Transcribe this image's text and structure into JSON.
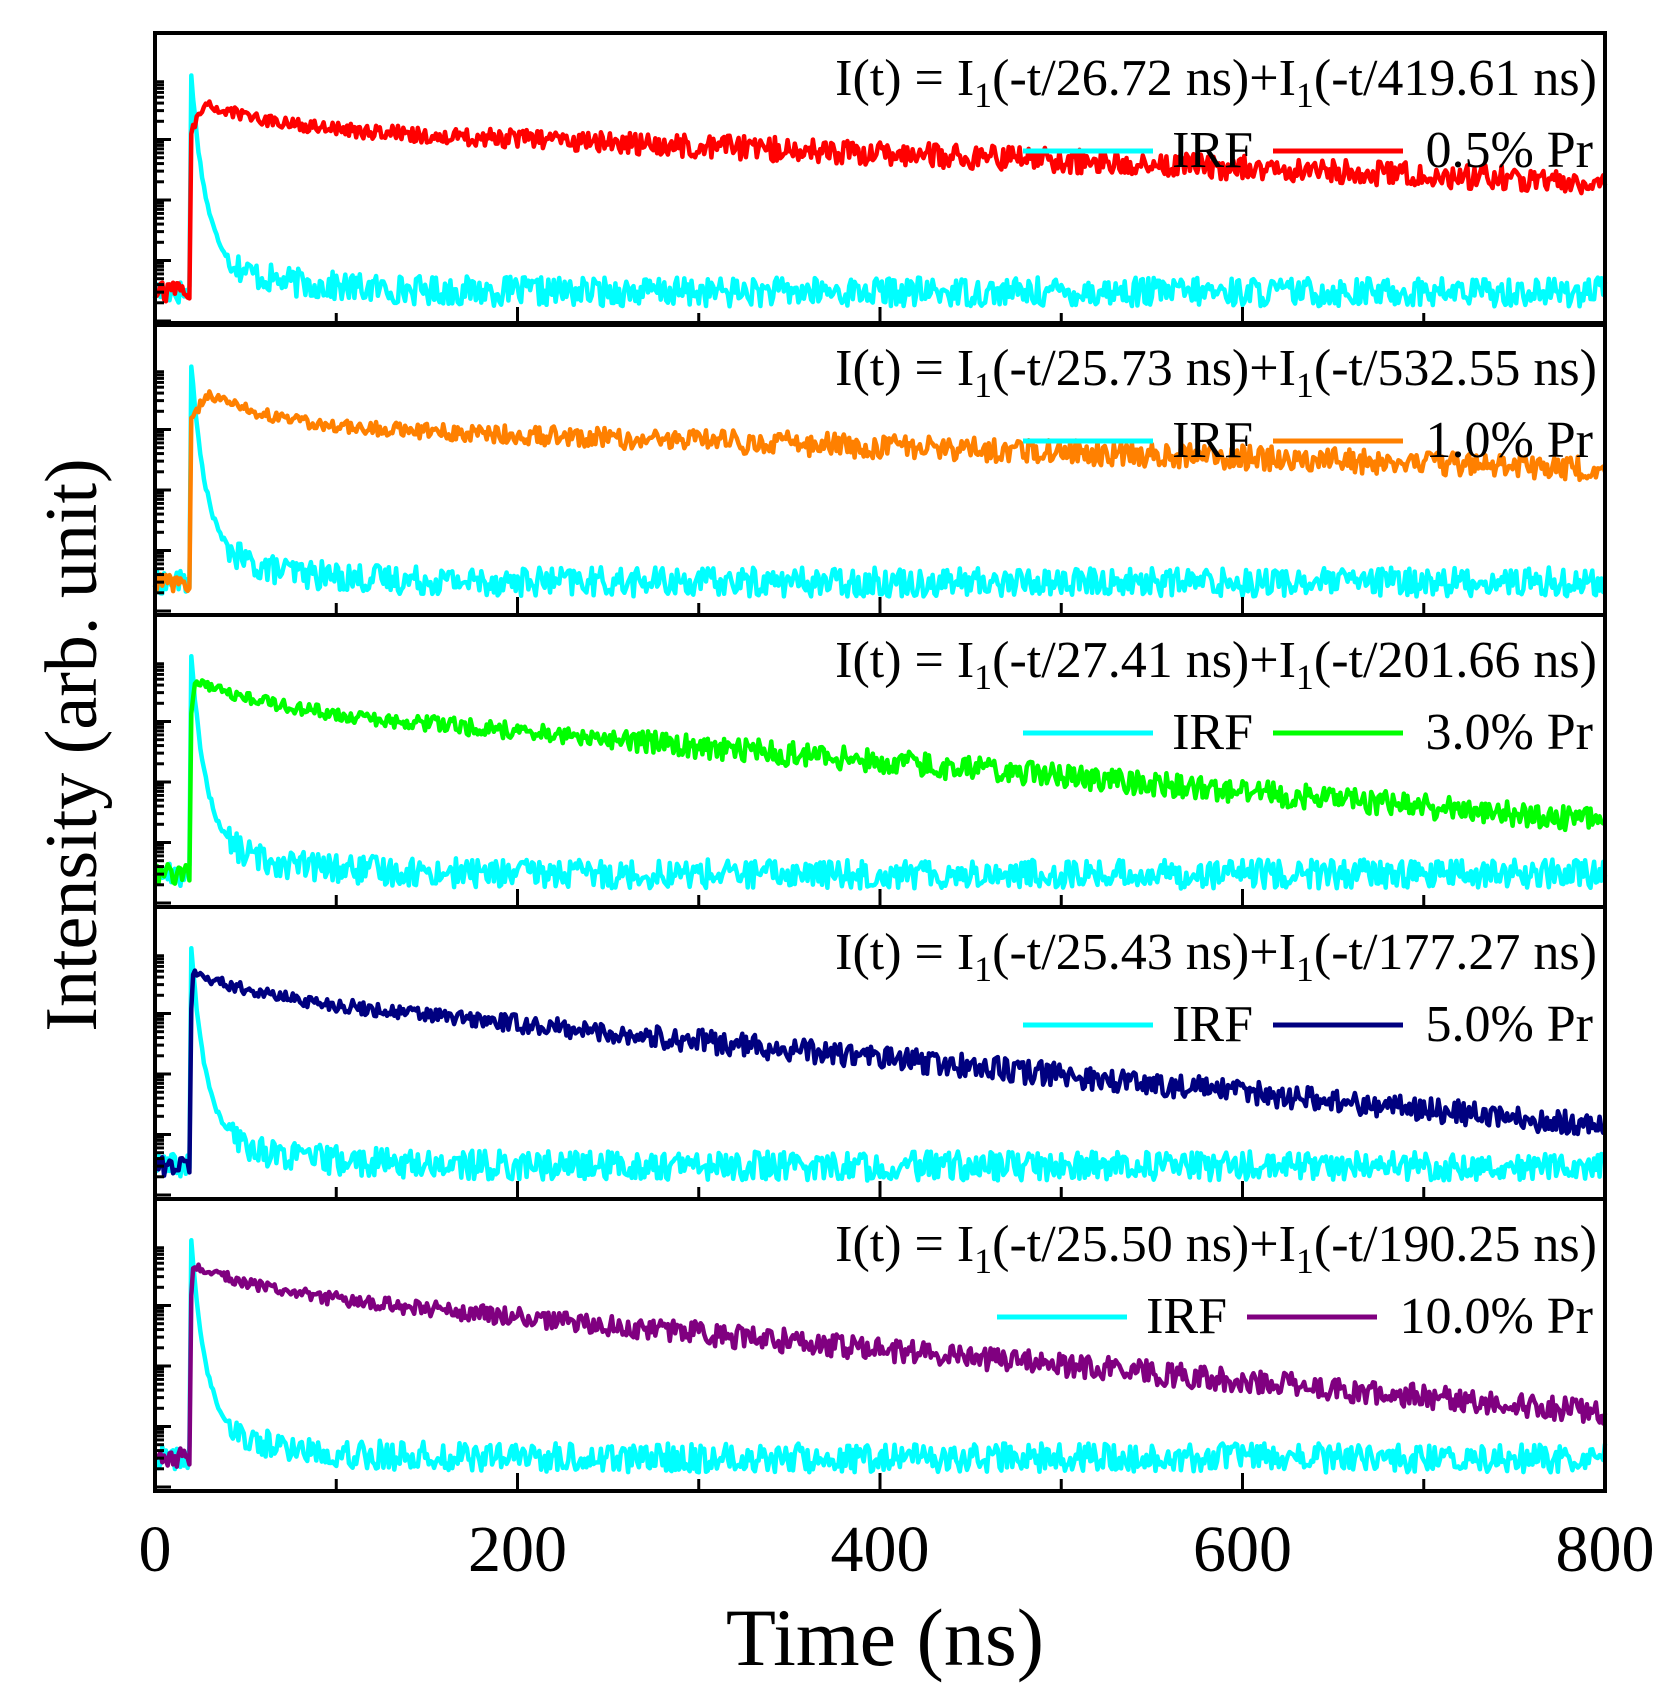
{
  "chart_data": {
    "type": "line",
    "title": "",
    "xlabel": "Time (ns)",
    "ylabel": "Intensity (arb. unit)",
    "xlim": [
      0,
      800
    ],
    "xticks": [
      0,
      200,
      400,
      600,
      800
    ],
    "x_minor_step": 100,
    "y_scale": "log",
    "y_decades": 4,
    "grid": false,
    "legend_position": "top-right",
    "panels": [
      {
        "equation_main": "I(t) = I",
        "equation_sub1": "1",
        "equation_mid": "(-t/26.72 ns)+I",
        "equation_sub2": "1",
        "equation_end": "(-t/419.61 ns)",
        "tau_short_ns": 26.72,
        "tau_long_ns": 419.61,
        "series": [
          {
            "name": "IRF",
            "color": "#00ffff",
            "onset_ns": 20
          },
          {
            "name": "0.5% Pr",
            "color": "#ff0000",
            "onset_ns": 20,
            "peak_ns": 28
          }
        ]
      },
      {
        "equation_main": "I(t) = I",
        "equation_sub1": "1",
        "equation_mid": "(-t/25.73 ns)+I",
        "equation_sub2": "1",
        "equation_end": "(-t/532.55 ns)",
        "tau_short_ns": 25.73,
        "tau_long_ns": 532.55,
        "series": [
          {
            "name": "IRF",
            "color": "#00ffff",
            "onset_ns": 20
          },
          {
            "name": "1.0% Pr",
            "color": "#ff8000",
            "onset_ns": 20,
            "peak_ns": 28
          }
        ]
      },
      {
        "equation_main": "I(t) = I",
        "equation_sub1": "1",
        "equation_mid": "(-t/27.41 ns)+I",
        "equation_sub2": "1",
        "equation_end": "(-t/201.66 ns)",
        "tau_short_ns": 27.41,
        "tau_long_ns": 201.66,
        "series": [
          {
            "name": "IRF",
            "color": "#00ffff",
            "onset_ns": 20
          },
          {
            "name": "3.0% Pr",
            "color": "#00ff00",
            "onset_ns": 20,
            "peak_ns": 22
          }
        ]
      },
      {
        "equation_main": "I(t) = I",
        "equation_sub1": "1",
        "equation_mid": "(-t/25.43 ns)+I",
        "equation_sub2": "1",
        "equation_end": "(-t/177.27 ns)",
        "tau_short_ns": 25.43,
        "tau_long_ns": 177.27,
        "series": [
          {
            "name": "IRF",
            "color": "#00ffff",
            "onset_ns": 20
          },
          {
            "name": "5.0% Pr",
            "color": "#000080",
            "onset_ns": 20,
            "peak_ns": 21
          }
        ]
      },
      {
        "equation_main": "I(t) = I",
        "equation_sub1": "1",
        "equation_mid": "(-t/25.50 ns)+I",
        "equation_sub2": "1",
        "equation_end": "(-t/190.25 ns)",
        "tau_short_ns": 25.5,
        "tau_long_ns": 190.25,
        "series": [
          {
            "name": "IRF",
            "color": "#00ffff",
            "onset_ns": 20
          },
          {
            "name": "10.0% Pr",
            "color": "#800080",
            "onset_ns": 20,
            "peak_ns": 21
          }
        ]
      }
    ]
  }
}
